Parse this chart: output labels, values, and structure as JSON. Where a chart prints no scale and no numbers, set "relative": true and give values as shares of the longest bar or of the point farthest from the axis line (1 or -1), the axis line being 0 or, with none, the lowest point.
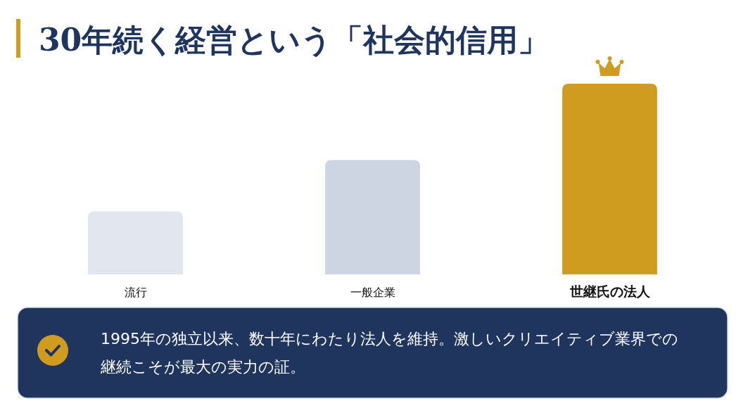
{
  "chart_data": {
    "type": "bar",
    "title": "30年続く経営という「社会的信用」",
    "categories": [
      "流行",
      "一般企業",
      "世継氏の法人"
    ],
    "values": [
      0.33,
      0.6,
      1
    ],
    "colors": [
      "#e2e6ef",
      "#cdd5e2",
      "#d09c1f"
    ],
    "relative": true,
    "annotations": [
      "1995年の独立以来、数十年にわたり法人を維持。激しいクリエイティブ業界での継続こそが最大の実力の証。"
    ]
  }
}
